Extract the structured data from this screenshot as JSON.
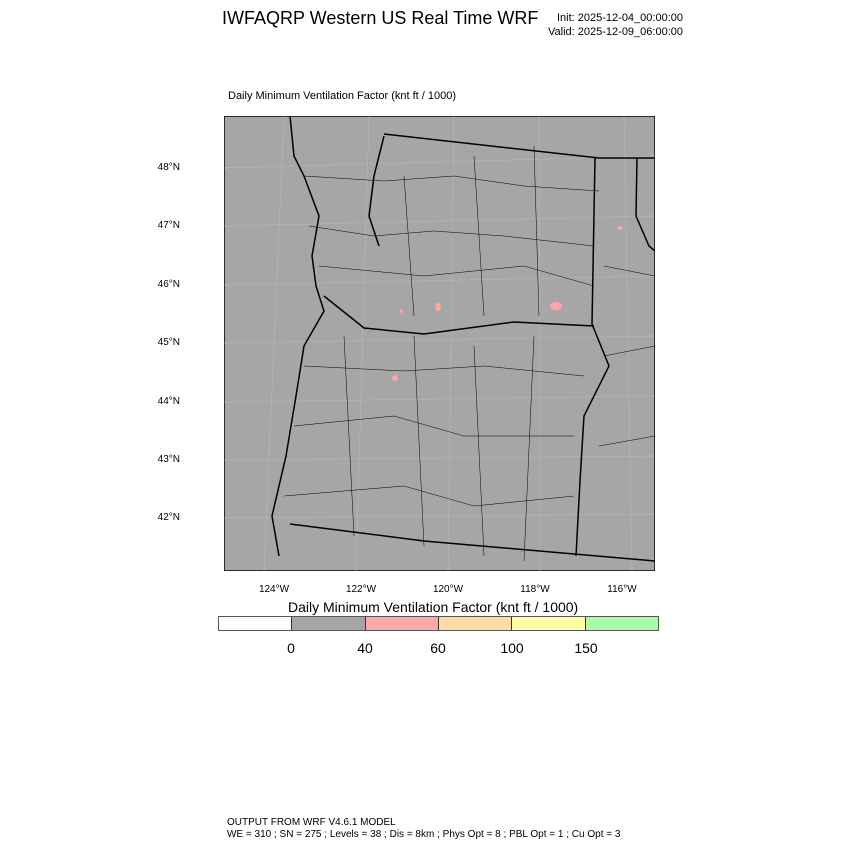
{
  "header": {
    "title": "IWFAQRP Western US Real Time WRF",
    "init": "Init: 2025-12-04_00:00:00",
    "valid": "Valid: 2025-12-09_06:00:00"
  },
  "plot": {
    "subtitle": "Daily Minimum Ventilation Factor   (knt ft / 1000)",
    "background_color": "#a6a6a6",
    "lat_labels": [
      "48°N",
      "47°N",
      "46°N",
      "45°N",
      "44°N",
      "43°N",
      "42°N"
    ],
    "lon_labels": [
      "124°W",
      "122°W",
      "120°W",
      "118°W",
      "116°W"
    ]
  },
  "colorbar": {
    "title": "Daily Minimum Ventilation Factor  (knt ft / 1000)",
    "colors": [
      "#ffffff",
      "#a6a6a6",
      "#ffa6a6",
      "#ffdca6",
      "#ffffa6",
      "#a6ffa6"
    ],
    "labels": [
      "0",
      "40",
      "60",
      "100",
      "150"
    ]
  },
  "footer": {
    "line1": "OUTPUT FROM WRF V4.6.1 MODEL",
    "line2": "WE = 310 ; SN = 275 ; Levels = 38 ; Dis = 8km ; Phys Opt = 8 ; PBL Opt = 1 ; Cu Opt = 3"
  }
}
